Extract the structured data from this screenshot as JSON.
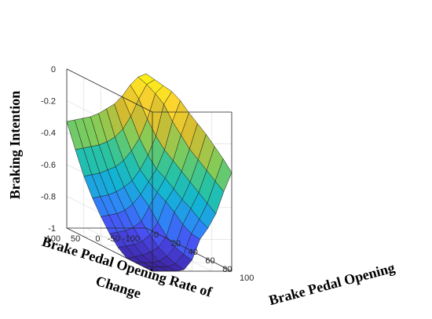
{
  "chart_data": {
    "type": "surface",
    "title": "",
    "xlabel": "Brake Pedal Opening",
    "ylabel": "Brake Pedal Opening Rate of Change",
    "ylabel_lines": [
      "Brake Pedal Opening Rate of",
      "Change"
    ],
    "zlabel": "Braking Intention",
    "x_ticks": [
      "0",
      "20",
      "40",
      "60",
      "80",
      "100"
    ],
    "y_ticks": [
      "-100",
      "-50",
      "0",
      "50",
      "100"
    ],
    "z_ticks": [
      "0",
      "-0.2",
      "-0.4",
      "-0.6",
      "-0.8",
      "-1"
    ],
    "xlim": [
      0,
      100
    ],
    "ylim": [
      -100,
      100
    ],
    "zlim": [
      -1,
      0
    ],
    "grid": true,
    "colormap": "parula",
    "colormap_stops": [
      "#3e26a8",
      "#4a4df3",
      "#2e87f7",
      "#13b4d4",
      "#2bc49f",
      "#81cc59",
      "#d4bb2f",
      "#fcd52e",
      "#f9fb0e"
    ],
    "x": [
      0,
      10,
      20,
      30,
      40,
      50,
      60,
      70,
      80,
      90,
      100
    ],
    "y": [
      -100,
      -80,
      -60,
      -40,
      -20,
      0,
      20,
      40,
      60,
      80,
      100
    ],
    "z": [
      [
        -0.03,
        -0.04,
        -0.05,
        -0.06,
        -0.09,
        -0.14,
        -0.18,
        -0.22,
        -0.27,
        -0.32,
        -0.38
      ],
      [
        -0.05,
        -0.07,
        -0.1,
        -0.14,
        -0.22,
        -0.28,
        -0.34,
        -0.38,
        -0.42,
        -0.46,
        -0.5
      ],
      [
        -0.1,
        -0.16,
        -0.26,
        -0.34,
        -0.4,
        -0.44,
        -0.48,
        -0.52,
        -0.56,
        -0.6,
        -0.64
      ],
      [
        -0.17,
        -0.27,
        -0.38,
        -0.46,
        -0.52,
        -0.55,
        -0.59,
        -0.63,
        -0.66,
        -0.7,
        -0.73
      ],
      [
        -0.22,
        -0.35,
        -0.46,
        -0.55,
        -0.6,
        -0.64,
        -0.67,
        -0.71,
        -0.76,
        -0.79,
        -0.8
      ],
      [
        -0.25,
        -0.4,
        -0.52,
        -0.62,
        -0.68,
        -0.73,
        -0.8,
        -0.86,
        -0.9,
        -0.92,
        -0.93
      ],
      [
        -0.28,
        -0.43,
        -0.56,
        -0.66,
        -0.74,
        -0.82,
        -0.88,
        -0.93,
        -0.96,
        -0.98,
        -0.99
      ],
      [
        -0.3,
        -0.45,
        -0.58,
        -0.69,
        -0.78,
        -0.86,
        -0.92,
        -0.96,
        -0.99,
        -1.0,
        -1.0
      ],
      [
        -0.31,
        -0.46,
        -0.6,
        -0.71,
        -0.8,
        -0.88,
        -0.94,
        -0.98,
        -1.0,
        -1.0,
        -1.0
      ],
      [
        -0.32,
        -0.47,
        -0.61,
        -0.72,
        -0.81,
        -0.89,
        -0.95,
        -0.99,
        -1.0,
        -1.0,
        -1.0
      ],
      [
        -0.33,
        -0.48,
        -0.62,
        -0.73,
        -0.82,
        -0.9,
        -0.96,
        -1.0,
        -1.0,
        -1.0,
        -1.0
      ]
    ]
  }
}
